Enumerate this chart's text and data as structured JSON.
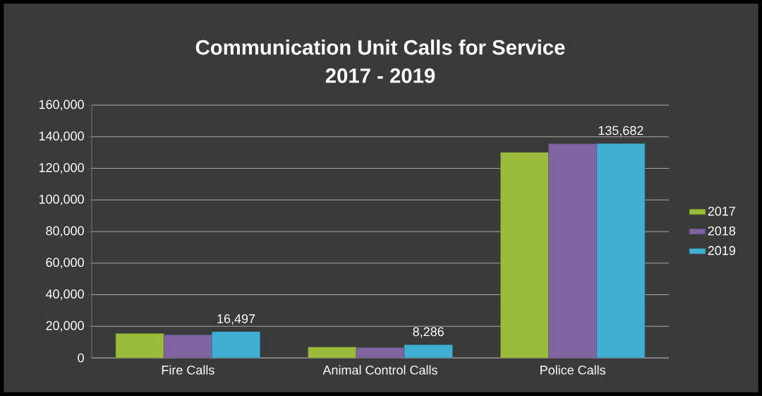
{
  "chart_data": {
    "type": "bar",
    "title": "Communication Unit Calls for Service",
    "subtitle": "2017 - 2019",
    "categories": [
      "Fire Calls",
      "Animal Control Calls",
      "Police Calls"
    ],
    "series": [
      {
        "name": "2017",
        "color": "#9bbb3b",
        "values": [
          15400,
          6800,
          130100
        ]
      },
      {
        "name": "2018",
        "color": "#8064a2",
        "values": [
          14600,
          6500,
          135500
        ]
      },
      {
        "name": "2019",
        "color": "#3fb0d0",
        "values": [
          16497,
          8286,
          135682
        ],
        "value_labels": [
          "16,497",
          "8,286",
          "135,682"
        ]
      }
    ],
    "ylim": [
      0,
      160000
    ],
    "yticks": [
      0,
      {
        "value": 20000,
        "label": "20,000"
      },
      {
        "value": 40000,
        "label": "40,000"
      },
      {
        "value": 60000,
        "label": "60,000"
      },
      {
        "value": 80000,
        "label": "80,000"
      },
      {
        "value": 100000,
        "label": "100,000"
      },
      {
        "value": 120000,
        "label": "120,000"
      },
      {
        "value": 140000,
        "label": "140,000"
      },
      {
        "value": 160000,
        "label": "160,000"
      }
    ],
    "grid": "y",
    "legend": "right"
  }
}
